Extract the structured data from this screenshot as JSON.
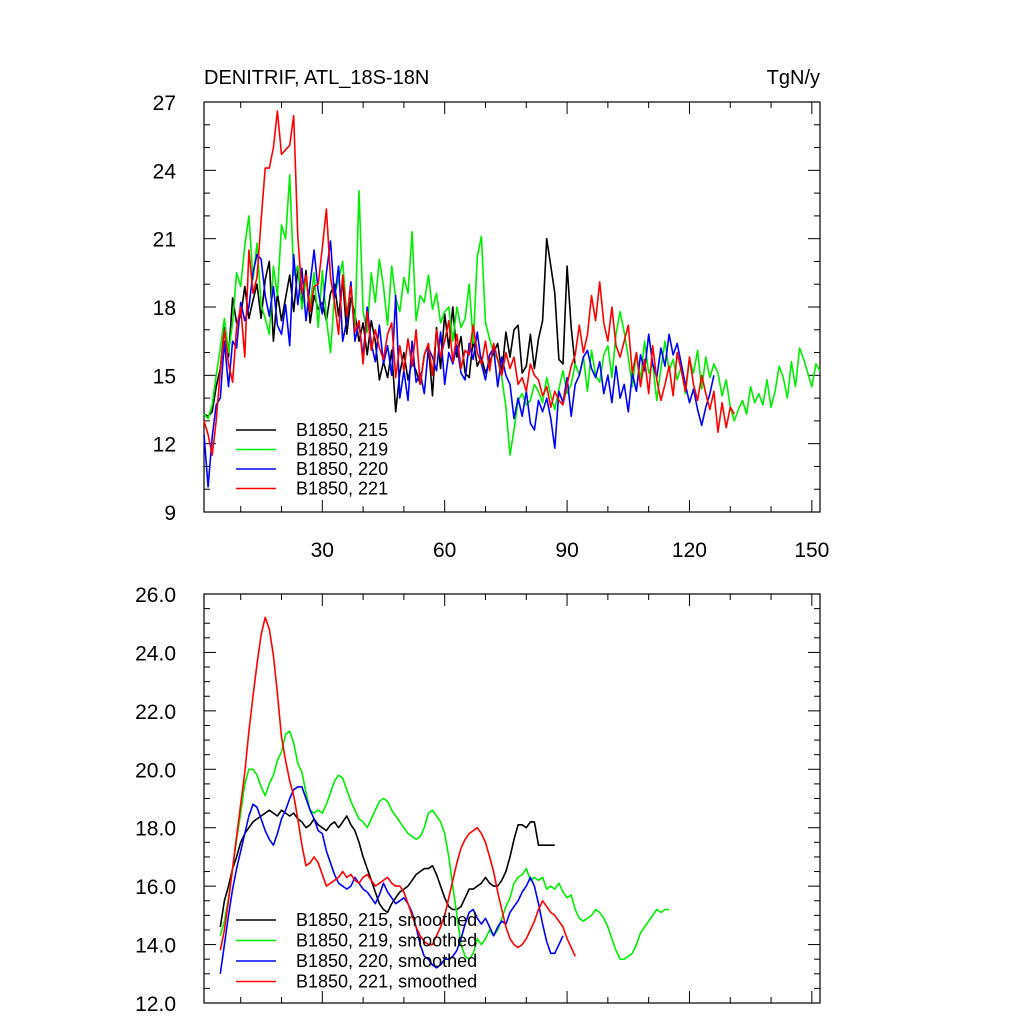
{
  "chart_data": [
    {
      "type": "line",
      "title": "DENITRIF, ATL_18S-18N",
      "units": "TgN/y",
      "xlim": [
        1,
        152
      ],
      "ylim": [
        9,
        27
      ],
      "xticks": [
        30,
        60,
        90,
        120,
        150
      ],
      "yticks": [
        9,
        12,
        15,
        18,
        21,
        24,
        27
      ],
      "series": [
        {
          "name": "B1850, 215",
          "color": "#000000",
          "y": [
            13.3,
            13.2,
            13.4,
            14.5,
            15.3,
            17.1,
            15.8,
            18.4,
            17.3,
            17.6,
            18.9,
            17.5,
            18.3,
            19.0,
            17.5,
            19.2,
            20.0,
            16.5,
            18.6,
            17.4,
            18.4,
            19.4,
            17.8,
            19.7,
            18.1,
            19.6,
            17.3,
            18.5,
            17.9,
            18.2,
            17.4,
            18.6,
            19.0,
            17.6,
            19.2,
            16.8,
            18.4,
            17.7,
            16.5,
            17.3,
            15.9,
            17.4,
            16.5,
            14.8,
            15.6,
            14.9,
            16.1,
            13.4,
            15.1,
            16.0,
            14.8,
            15.6,
            15.2,
            14.6,
            15.9,
            16.3,
            14.1,
            17.1,
            15.3,
            17.7,
            16.2,
            18.0,
            15.8,
            16.7,
            15.1,
            14.9,
            16.6,
            15.4,
            15.8,
            15.1,
            15.6,
            16.0,
            16.4,
            15.1,
            16.9,
            15.8,
            17.0,
            17.2,
            15.1,
            15.4,
            16.8,
            15.3,
            16.6,
            17.4,
            21.0,
            19.8,
            18.6,
            15.7,
            15.5,
            19.8,
            17.1,
            15.4
          ]
        },
        {
          "name": "B1850, 219",
          "color": "#00ee00",
          "y": [
            13.3,
            13.1,
            13.7,
            15.0,
            16.2,
            17.5,
            16.0,
            17.3,
            19.5,
            18.9,
            20.7,
            22.0,
            19.2,
            20.8,
            18.1,
            17.5,
            16.8,
            19.8,
            18.5,
            21.6,
            21.0,
            23.8,
            19.4,
            19.8,
            17.9,
            19.2,
            18.1,
            19.5,
            17.1,
            19.6,
            17.5,
            16.0,
            18.5,
            19.2,
            20.0,
            17.6,
            19.0,
            17.0,
            23.1,
            17.8,
            16.9,
            19.5,
            18.2,
            20.1,
            18.9,
            17.2,
            19.8,
            18.4,
            17.8,
            19.3,
            18.6,
            21.3,
            17.4,
            18.5,
            18.2,
            19.4,
            17.9,
            18.6,
            17.3,
            17.8,
            18.0,
            16.5,
            18.0,
            17.1,
            17.5,
            19.0,
            16.4,
            20.2,
            21.1,
            17.3,
            16.6,
            16.0,
            15.7,
            14.9,
            13.6,
            11.5,
            12.6,
            13.9,
            14.2,
            13.7,
            13.9,
            14.6,
            14.3,
            13.8,
            14.9,
            14.1,
            13.5,
            14.4,
            15.2,
            14.2,
            14.6,
            15.5,
            15.0,
            15.8,
            14.3,
            16.1,
            15.0,
            14.7,
            15.9,
            16.3,
            14.9,
            16.8,
            17.8,
            16.9,
            15.8,
            14.5,
            16.0,
            14.8,
            16.5,
            15.1,
            15.5,
            13.9,
            15.3,
            16.5,
            15.2,
            15.7,
            14.8,
            15.4,
            14.2,
            15.7,
            15.1,
            16.1,
            14.4,
            15.8,
            14.9,
            15.5,
            15.1,
            14.1,
            14.8,
            13.6,
            13.0,
            13.5,
            13.9,
            13.3,
            14.5,
            13.8,
            14.2,
            13.7,
            14.8,
            13.6,
            14.3,
            15.4,
            14.9,
            14.0,
            15.6,
            14.5,
            16.2,
            15.7,
            15.1,
            14.5,
            15.5,
            15.2
          ]
        },
        {
          "name": "B1850, 220",
          "color": "#0000ff",
          "y": [
            12.4,
            10.1,
            12.3,
            13.7,
            14.0,
            16.5,
            14.5,
            16.5,
            16.2,
            18.2,
            17.4,
            18.0,
            19.5,
            20.3,
            20.1,
            18.5,
            17.6,
            18.9,
            17.2,
            16.8,
            18.1,
            16.3,
            20.3,
            18.1,
            19.7,
            17.4,
            19.0,
            20.5,
            18.7,
            17.7,
            19.5,
            20.9,
            18.4,
            19.8,
            16.5,
            17.4,
            19.1,
            16.5,
            17.3,
            15.8,
            18.0,
            16.4,
            15.6,
            17.2,
            15.5,
            16.3,
            15.0,
            18.5,
            14.0,
            15.2,
            13.9,
            16.5,
            14.7,
            15.1,
            14.2,
            16.2,
            15.8,
            15.2,
            16.9,
            14.6,
            16.0,
            15.5,
            16.3,
            15.1,
            14.8,
            16.4,
            15.7,
            16.9,
            15.5,
            14.8,
            15.9,
            16.2,
            14.5,
            15.8,
            15.0,
            14.6,
            13.1,
            14.0,
            13.2,
            14.3,
            12.9,
            12.6,
            13.9,
            13.4,
            14.0,
            13.1,
            11.8,
            14.3,
            13.8,
            14.9,
            13.2,
            14.6,
            15.0,
            15.8,
            16.1,
            15.3,
            14.9,
            15.6,
            14.2,
            15.0,
            13.8,
            15.4,
            14.0,
            14.6,
            13.4,
            15.1,
            14.3,
            15.9,
            15.2,
            16.8,
            15.5,
            14.9,
            16.2,
            15.4,
            16.8,
            15.9,
            16.4,
            15.5,
            14.6,
            13.8,
            14.4,
            13.5,
            12.8,
            13.6,
            14.2,
            15.0
          ]
        },
        {
          "name": "B1850, 221",
          "color": "#ff0000",
          "y": [
            13.0,
            12.4,
            11.5,
            13.0,
            15.2,
            17.0,
            15.5,
            14.7,
            17.1,
            18.0,
            15.8,
            20.5,
            18.6,
            19.3,
            21.8,
            24.1,
            24.1,
            25.0,
            26.6,
            24.7,
            24.9,
            25.1,
            26.4,
            21.1,
            18.6,
            19.4,
            17.8,
            18.9,
            19.0,
            20.6,
            22.3,
            19.3,
            18.2,
            16.8,
            19.4,
            17.6,
            18.9,
            16.9,
            17.4,
            15.5,
            17.8,
            16.1,
            17.0,
            16.2,
            15.7,
            16.8,
            17.3,
            14.9,
            16.3,
            15.2,
            16.6,
            15.4,
            17.0,
            14.6,
            15.9,
            16.4,
            15.0,
            17.0,
            15.8,
            16.5,
            17.4,
            15.6,
            16.8,
            15.3,
            16.1,
            15.9,
            17.2,
            16.0,
            15.5,
            16.5,
            15.2,
            16.4,
            15.7,
            15.0,
            16.0,
            15.3,
            15.8,
            14.6,
            14.9,
            14.3,
            15.5,
            15.0,
            14.8,
            14.1,
            14.5,
            13.6,
            14.3,
            13.9,
            13.7,
            14.6,
            15.4,
            15.9,
            17.2,
            16.0,
            16.8,
            18.5,
            17.4,
            19.1,
            17.3,
            16.5,
            18.0,
            16.3,
            15.8,
            16.5,
            17.2,
            15.1,
            16.0,
            14.5,
            15.7,
            14.2,
            16.3,
            14.8,
            13.9,
            14.6,
            15.4,
            14.1,
            16.0,
            15.2,
            14.3,
            15.8,
            14.6,
            13.9,
            15.0,
            14.2,
            13.5,
            14.3,
            12.5,
            13.8,
            12.7,
            13.6,
            13.3
          ]
        }
      ],
      "legend": [
        "B1850, 215",
        "B1850, 219",
        "B1850, 220",
        "B1850, 221"
      ]
    },
    {
      "type": "line",
      "title": "",
      "xlim": [
        1,
        152
      ],
      "ylim": [
        12,
        26
      ],
      "xticks": [
        30,
        60,
        90,
        120,
        150
      ],
      "yticks": [
        12.0,
        14.0,
        16.0,
        18.0,
        20.0,
        22.0,
        24.0,
        26.0
      ],
      "ytick_labels": [
        "12.0",
        "14.0",
        "16.0",
        "18.0",
        "20.0",
        "22.0",
        "24.0",
        "26.0"
      ],
      "series": [
        {
          "name": "B1850, 215, smoothed",
          "color": "#000000",
          "y": [
            14.6,
            15.5,
            16.0,
            16.6,
            17.0,
            17.5,
            17.8,
            18.0,
            18.2,
            18.3,
            18.4,
            18.5,
            18.6,
            18.5,
            18.4,
            18.6,
            18.5,
            18.4,
            18.5,
            18.3,
            18.2,
            18.0,
            18.1,
            18.3,
            18.1,
            18.0,
            17.9,
            18.1,
            18.2,
            18.0,
            18.2,
            18.4,
            18.1,
            17.9,
            17.5,
            17.0,
            16.6,
            16.2,
            15.8,
            15.4,
            15.2,
            15.1,
            15.4,
            15.6,
            15.8,
            15.9,
            16.0,
            16.2,
            16.4,
            16.5,
            16.6,
            16.6,
            16.7,
            16.4,
            16.0,
            15.6,
            15.3,
            15.2,
            15.2,
            15.3,
            15.6,
            15.9,
            15.9,
            16.0,
            16.1,
            16.3,
            16.1,
            16.0,
            16.0,
            16.2,
            16.5,
            17.0,
            17.6,
            18.1,
            18.1,
            18.0,
            18.2,
            18.2,
            17.4,
            17.4,
            17.4,
            17.4,
            17.4
          ]
        },
        {
          "name": "B1850, 219, smoothed",
          "color": "#00ee00",
          "y": [
            14.3,
            14.8,
            15.6,
            16.6,
            17.6,
            18.5,
            19.5,
            20.0,
            20.0,
            19.8,
            19.4,
            19.1,
            19.5,
            19.8,
            20.3,
            20.6,
            21.2,
            21.3,
            20.9,
            20.2,
            19.9,
            19.2,
            18.6,
            18.5,
            18.6,
            18.5,
            18.8,
            19.2,
            19.6,
            19.8,
            19.7,
            19.3,
            18.9,
            18.6,
            18.3,
            18.2,
            18.0,
            18.3,
            18.6,
            18.9,
            19.0,
            18.9,
            18.6,
            18.4,
            18.2,
            18.0,
            17.8,
            17.7,
            17.6,
            17.7,
            18.0,
            18.5,
            18.6,
            18.4,
            18.2,
            17.8,
            17.0,
            16.0,
            15.0,
            14.0,
            13.6,
            13.5,
            13.7,
            14.2,
            14.0,
            14.2,
            14.5,
            14.3,
            14.5,
            14.9,
            15.3,
            15.6,
            16.1,
            16.3,
            16.4,
            16.6,
            16.2,
            16.3,
            16.2,
            16.3,
            15.9,
            16.0,
            15.9,
            16.1,
            15.8,
            15.6,
            15.7,
            15.2,
            14.9,
            14.8,
            14.9,
            15.0,
            15.2,
            15.1,
            14.9,
            14.6,
            14.2,
            13.8,
            13.5,
            13.5,
            13.6,
            13.7,
            14.0,
            14.4,
            14.6,
            14.8,
            15.0,
            15.2,
            15.1,
            15.2,
            15.2
          ]
        },
        {
          "name": "B1850, 220, smoothed",
          "color": "#0000ff",
          "y": [
            13.0,
            14.0,
            15.0,
            15.9,
            16.6,
            17.2,
            17.8,
            18.4,
            18.8,
            18.7,
            18.3,
            17.9,
            17.6,
            17.4,
            17.8,
            18.3,
            18.6,
            19.0,
            19.3,
            19.4,
            19.4,
            19.0,
            18.6,
            18.3,
            17.9,
            17.8,
            17.2,
            16.8,
            16.4,
            16.1,
            16.0,
            15.9,
            16.0,
            16.3,
            16.1,
            15.9,
            15.8,
            15.6,
            15.4,
            15.7,
            16.1,
            15.8,
            15.6,
            15.4,
            15.5,
            15.6,
            15.4,
            15.1,
            14.6,
            14.0,
            13.6,
            13.5,
            13.3,
            13.2,
            13.3,
            13.5,
            13.5,
            13.6,
            13.8,
            14.2,
            14.7,
            15.1,
            15.2,
            14.9,
            14.7,
            14.9,
            14.6,
            14.3,
            14.6,
            14.8,
            14.7,
            15.1,
            15.3,
            15.5,
            15.8,
            16.0,
            16.3,
            16.0,
            15.4,
            14.7,
            14.1,
            13.7,
            13.7,
            14.0,
            14.3
          ]
        },
        {
          "name": "B1850, 221, smoothed",
          "color": "#ff0000",
          "y": [
            13.8,
            14.5,
            15.5,
            16.6,
            17.7,
            18.8,
            19.9,
            21.3,
            22.5,
            23.6,
            24.6,
            25.2,
            24.8,
            23.9,
            22.6,
            21.1,
            20.3,
            19.6,
            19.1,
            18.3,
            17.4,
            16.7,
            16.8,
            17.0,
            16.8,
            16.4,
            16.0,
            16.1,
            16.2,
            16.3,
            16.5,
            16.3,
            16.4,
            16.2,
            16.1,
            16.3,
            16.4,
            16.2,
            16.0,
            16.1,
            16.2,
            16.3,
            16.1,
            16.0,
            16.0,
            15.8,
            15.4,
            15.0,
            14.6,
            14.3,
            14.1,
            14.0,
            14.0,
            14.3,
            14.6,
            15.0,
            15.6,
            16.2,
            16.8,
            17.3,
            17.6,
            17.8,
            17.9,
            18.0,
            17.8,
            17.5,
            17.0,
            16.5,
            15.8,
            15.2,
            14.6,
            14.2,
            14.0,
            13.9,
            14.0,
            14.2,
            14.5,
            14.8,
            15.2,
            15.5,
            15.3,
            15.1,
            15.0,
            14.8,
            14.6,
            14.2,
            13.9,
            13.6
          ]
        }
      ],
      "legend": [
        "B1850, 215, smoothed",
        "B1850, 219, smoothed",
        "B1850, 220, smoothed",
        "B1850, 221, smoothed"
      ]
    }
  ]
}
